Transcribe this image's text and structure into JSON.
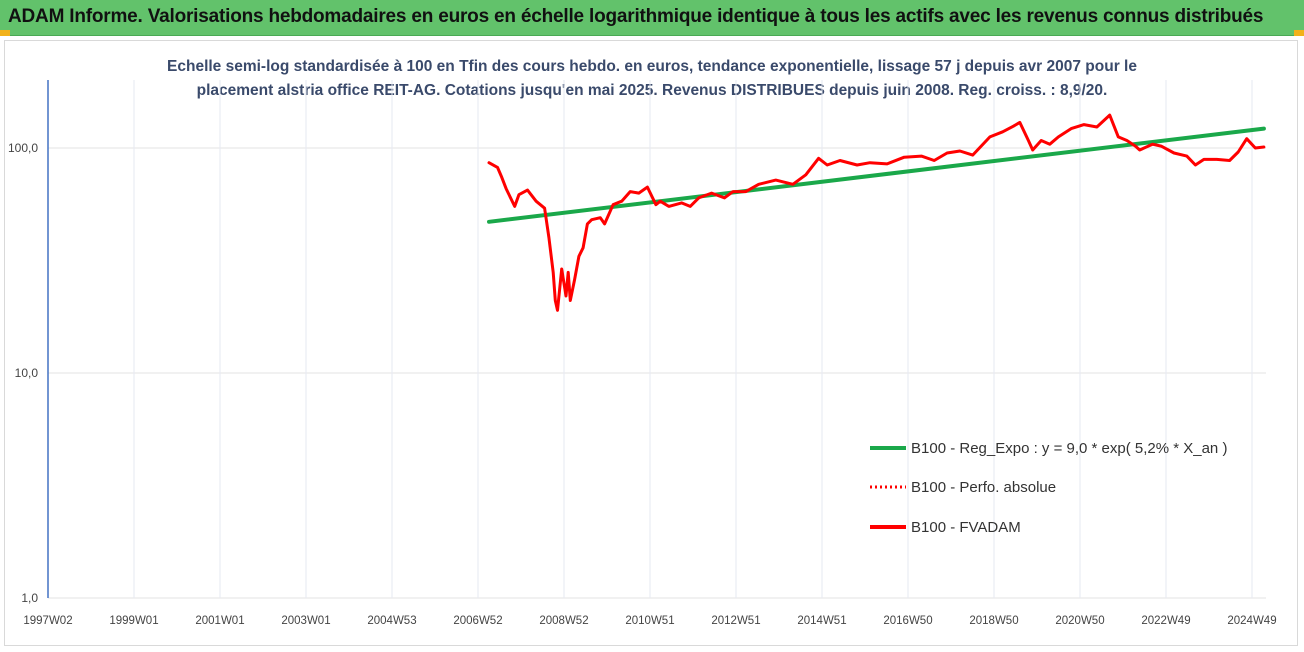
{
  "header": {
    "title": "ADAM Informe. Valorisations hebdomadaires en euros en échelle logarithmique identique à tous les actifs avec les revenus connus distribués"
  },
  "colors": {
    "banner": "#62c26b",
    "regression": "#1aa84a",
    "perf": "#ff0000",
    "fvadam": "#ff0000"
  },
  "chart_data": {
    "type": "line",
    "subtitle_line1": "Echelle semi-log standardisée à 100 en Tfin des cours hebdo. en euros, tendance exponentielle, lissage 57 j depuis avr 2007 pour le",
    "subtitle_line2": "placement alstria office REIT-AG. Cotations jusqu'en mai 2025. Revenus DISTRIBUES depuis juin 2008. Reg. croiss. : 8,9/20.",
    "y_scale": "log",
    "ylim": [
      1,
      1000
    ],
    "y_ticks": [
      "1,0",
      "10,0",
      "100,0"
    ],
    "x_ticks": [
      "1997W02",
      "1999W01",
      "2001W01",
      "2003W01",
      "2004W53",
      "2006W52",
      "2008W52",
      "2010W51",
      "2012W51",
      "2014W51",
      "2016W50",
      "2018W50",
      "2020W50",
      "2022W49",
      "2024W49"
    ],
    "xlim": [
      1997.0,
      2025.45
    ],
    "grid": "vertical",
    "legend_position": "right",
    "series": [
      {
        "name": "B100 - Reg_Expo : y = 9,0 * exp( 5,2% *  X_an )",
        "style": "solid",
        "x": [
          2007.3,
          2025.4
        ],
        "y": [
          47,
          122
        ]
      },
      {
        "name": "B100 - Perfo. absolue",
        "style": "dotted",
        "x": [],
        "y": []
      },
      {
        "name": "B100 - FVADAM",
        "style": "solid",
        "x": [
          2007.3,
          2007.5,
          2007.6,
          2007.7,
          2007.9,
          2008.0,
          2008.2,
          2008.4,
          2008.6,
          2008.7,
          2008.8,
          2008.85,
          2008.9,
          2009.0,
          2009.1,
          2009.15,
          2009.2,
          2009.3,
          2009.4,
          2009.5,
          2009.6,
          2009.7,
          2009.9,
          2010.0,
          2010.2,
          2010.4,
          2010.6,
          2010.8,
          2011.0,
          2011.2,
          2011.3,
          2011.5,
          2011.8,
          2012.0,
          2012.2,
          2012.5,
          2012.8,
          2013.0,
          2013.3,
          2013.6,
          2014.0,
          2014.4,
          2014.7,
          2015.0,
          2015.2,
          2015.5,
          2015.9,
          2016.2,
          2016.6,
          2017.0,
          2017.4,
          2017.7,
          2018.0,
          2018.3,
          2018.6,
          2019.0,
          2019.3,
          2019.55,
          2019.7,
          2019.9,
          2020.0,
          2020.2,
          2020.4,
          2020.6,
          2020.9,
          2021.2,
          2021.5,
          2021.8,
          2022.0,
          2022.2,
          2022.4,
          2022.5,
          2022.8,
          2023.0,
          2023.3,
          2023.6,
          2023.8,
          2024.0,
          2024.3,
          2024.6,
          2024.8,
          2025.0,
          2025.2,
          2025.4
        ],
        "y": [
          86,
          82,
          74,
          66,
          55,
          62,
          65,
          58,
          54,
          40,
          28,
          21,
          19,
          29,
          22,
          28,
          21,
          26,
          33,
          36,
          46,
          48,
          49,
          46,
          56,
          58,
          64,
          63,
          67,
          56,
          58,
          55,
          57,
          55,
          60,
          63,
          60,
          64,
          64,
          69,
          72,
          69,
          76,
          90,
          84,
          88,
          84,
          86,
          85,
          91,
          92,
          88,
          95,
          97,
          93,
          112,
          118,
          125,
          130,
          108,
          98,
          108,
          104,
          112,
          122,
          127,
          124,
          140,
          112,
          108,
          102,
          98,
          104,
          102,
          95,
          92,
          84,
          89,
          89,
          88,
          96,
          110,
          100,
          101
        ]
      }
    ]
  }
}
